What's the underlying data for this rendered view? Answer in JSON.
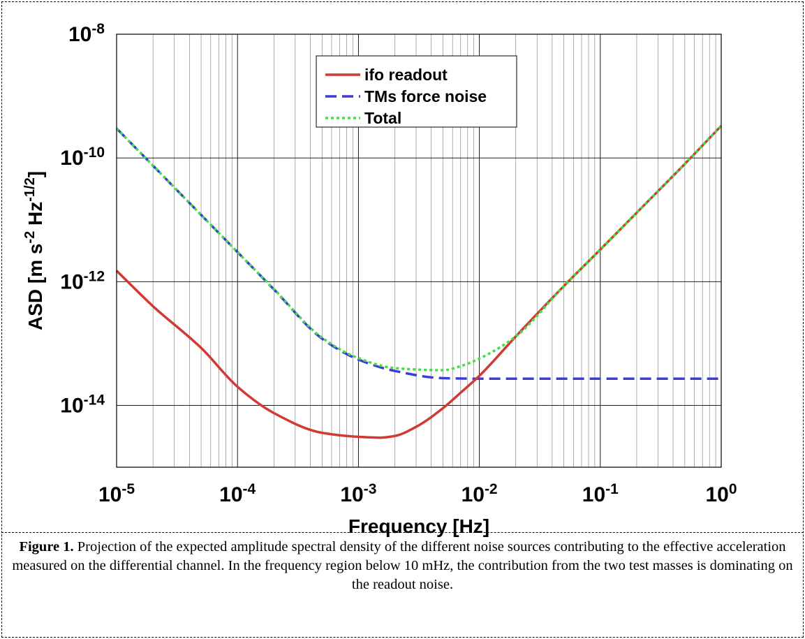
{
  "chart_data": {
    "type": "line",
    "xscale": "log",
    "yscale": "log",
    "xlim": [
      1e-05,
      1
    ],
    "ylim": [
      1e-15,
      1e-08
    ],
    "grid": true,
    "legend_position": "top-center",
    "xlabel": "Frequency  [Hz]",
    "ylabel": {
      "prefix": "ASD  [m s",
      "sup1": "-2",
      "mid": " Hz",
      "sup2": "-1/2",
      "suffix": "]"
    },
    "x_ticks": [
      {
        "base": "10",
        "exp": "-5",
        "value": 1e-05
      },
      {
        "base": "10",
        "exp": "-4",
        "value": 0.0001
      },
      {
        "base": "10",
        "exp": "-3",
        "value": 0.001
      },
      {
        "base": "10",
        "exp": "-2",
        "value": 0.01
      },
      {
        "base": "10",
        "exp": "-1",
        "value": 0.1
      },
      {
        "base": "10",
        "exp": "0",
        "value": 1
      }
    ],
    "y_ticks": [
      {
        "base": "10",
        "exp": "-14",
        "value": 1e-14
      },
      {
        "base": "10",
        "exp": "-12",
        "value": 1e-12
      },
      {
        "base": "10",
        "exp": "-10",
        "value": 1e-10
      },
      {
        "base": "10",
        "exp": "-8",
        "value": 1e-08
      }
    ],
    "series": [
      {
        "name": "ifo readout",
        "color": "#d03a32",
        "style": "solid",
        "x": [
          1e-05,
          2e-05,
          5e-05,
          0.0001,
          0.0002,
          0.0005,
          0.001,
          0.0015,
          0.002,
          0.003,
          0.005,
          0.007,
          0.01,
          0.02,
          0.05,
          0.1,
          0.2,
          0.5,
          1
        ],
        "y": [
          1.5e-12,
          4e-13,
          8.5e-14,
          2e-14,
          7.5e-15,
          3.6e-15,
          3.1e-15,
          3e-15,
          3.2e-15,
          4.5e-15,
          9e-15,
          1.6e-14,
          3e-14,
          1.3e-13,
          8.5e-13,
          3.3e-12,
          1.3e-11,
          8e-11,
          3.3e-10
        ]
      },
      {
        "name": "TMs force noise",
        "color": "#3b3bd6",
        "style": "dashed",
        "x": [
          1e-05,
          2e-05,
          5e-05,
          0.0001,
          0.0002,
          0.0005,
          0.001,
          0.002,
          0.005,
          0.01,
          0.1,
          1
        ],
        "y": [
          3e-10,
          7.5e-11,
          1.2e-11,
          3e-12,
          7.5e-13,
          1.2e-13,
          5.5e-14,
          3.6e-14,
          2.75e-14,
          2.7e-14,
          2.7e-14,
          2.7e-14
        ]
      },
      {
        "name": "Total",
        "color": "#44dd44",
        "style": "dotted",
        "x": [
          1e-05,
          2e-05,
          5e-05,
          0.0001,
          0.0002,
          0.0005,
          0.001,
          0.002,
          0.005,
          0.007,
          0.01,
          0.02,
          0.05,
          0.1,
          0.2,
          0.5,
          1
        ],
        "y": [
          3e-10,
          7.5e-11,
          1.2e-11,
          3e-12,
          7.6e-13,
          1.24e-13,
          5.8e-14,
          4e-14,
          3.7e-14,
          4.3e-14,
          5.7e-14,
          1.3e-13,
          8.5e-13,
          3.3e-12,
          1.3e-11,
          8e-11,
          3.3e-10
        ]
      }
    ]
  },
  "caption": {
    "label": "Figure 1.",
    "text": " Projection of the expected amplitude spectral density of the different noise sources contributing to the effective acceleration measured on the differential channel. In the frequency region below 10 mHz, the contribution from the two test masses is dominating on the readout noise."
  }
}
